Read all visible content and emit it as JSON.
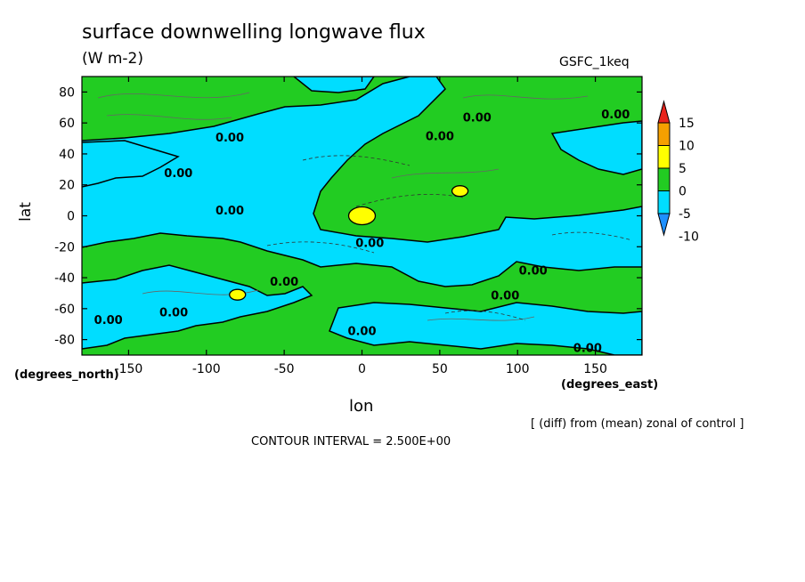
{
  "chart_data": {
    "type": "heatmap",
    "title": "surface downwelling longwave flux",
    "units": "(W m-2)",
    "model": "GSFC_1keq",
    "xlabel": "lon",
    "ylabel": "lat",
    "x_unit_label": "(degrees_east)",
    "y_unit_label": "(degrees_north)",
    "xlim": [
      -180,
      180
    ],
    "ylim": [
      -90,
      90
    ],
    "x_ticks": [
      -150,
      -100,
      -50,
      0,
      50,
      100,
      150
    ],
    "y_ticks": [
      80,
      60,
      40,
      20,
      0,
      -20,
      -40,
      -60,
      -80
    ],
    "contour_label": "0.00",
    "contour_interval": "CONTOUR INTERVAL = 2.500E+00",
    "note": "[ (diff) from (mean) zonal of control ]",
    "colorbar": {
      "ticks": [
        15,
        10,
        5,
        0,
        -5,
        -10
      ],
      "colors": [
        "#e8241c",
        "#f5a000",
        "#ffff00",
        "#22cc22",
        "#00ddff",
        "#1e90ff"
      ]
    },
    "contour_label_positions": [
      {
        "lon": -85,
        "lat": 48
      },
      {
        "lon": -118,
        "lat": 25
      },
      {
        "lon": -85,
        "lat": 1
      },
      {
        "lon": 5,
        "lat": -20
      },
      {
        "lon": -50,
        "lat": -45
      },
      {
        "lon": -121,
        "lat": -65
      },
      {
        "lon": -163,
        "lat": -70
      },
      {
        "lon": 0,
        "lat": -77
      },
      {
        "lon": 50,
        "lat": 49
      },
      {
        "lon": 74,
        "lat": 61
      },
      {
        "lon": 163,
        "lat": 63
      },
      {
        "lon": 110,
        "lat": -38
      },
      {
        "lon": 92,
        "lat": -54
      },
      {
        "lon": 145,
        "lat": -88
      }
    ],
    "warm_anomalies": [
      {
        "lon": 0,
        "lat": 0,
        "value": 7.5
      },
      {
        "lon": 63,
        "lat": 16,
        "value": 7.5
      },
      {
        "lon": -80,
        "lat": -51,
        "value": 7.5
      }
    ]
  }
}
